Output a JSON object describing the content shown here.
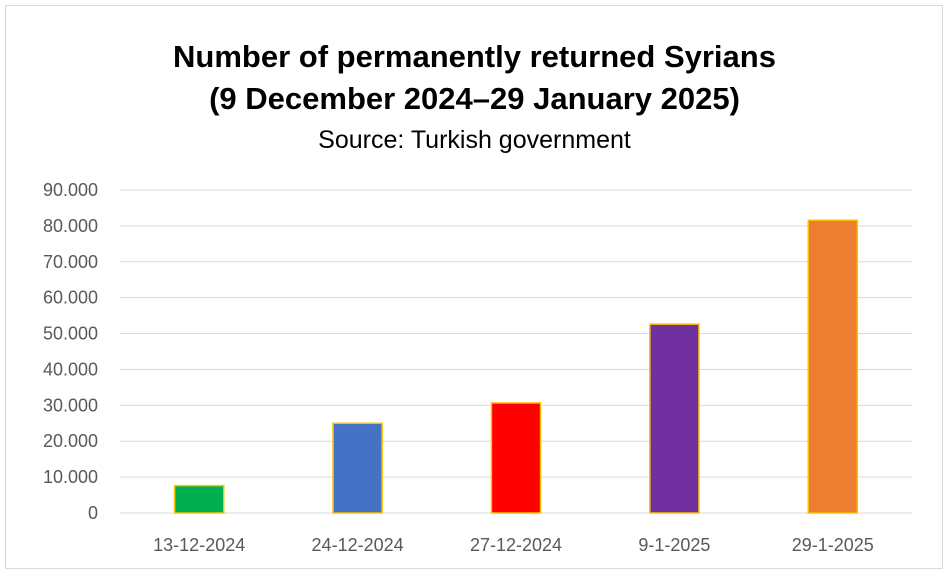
{
  "chart_data": {
    "type": "bar",
    "title_line1": "Number of permanently returned Syrians",
    "title_line2": "(9 December 2024–29 January 2025)",
    "subtitle": "Source: Turkish government",
    "xlabel": "",
    "ylabel": "",
    "categories": [
      "13-12-2024",
      "24-12-2024",
      "27-12-2024",
      "9-1-2025",
      "29-1-2025"
    ],
    "values": [
      7621,
      25000,
      30663,
      52622,
      81576
    ],
    "colors": [
      "#00b050",
      "#4472c4",
      "#ff0000",
      "#7030a0",
      "#ed7d31"
    ],
    "bar_outline_color": "#ffc000",
    "ylim": [
      0,
      90000
    ],
    "y_ticks": [
      0,
      10000,
      20000,
      30000,
      40000,
      50000,
      60000,
      70000,
      80000,
      90000
    ],
    "y_tick_labels": [
      "0",
      "10.000",
      "20.000",
      "30.000",
      "40.000",
      "50.000",
      "60.000",
      "70.000",
      "80.000",
      "90.000"
    ],
    "grid": true,
    "legend": "none"
  }
}
